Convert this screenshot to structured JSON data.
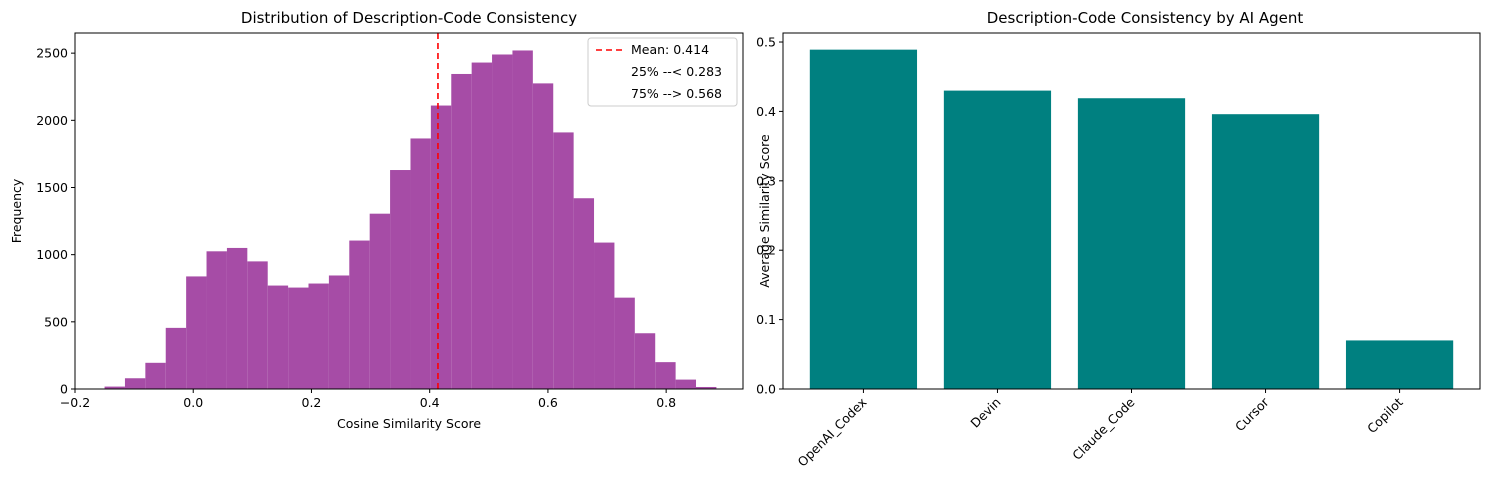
{
  "chart_data": [
    {
      "type": "bar",
      "subtype": "histogram",
      "title": "Distribution of Description-Code Consistency",
      "xlabel": "Cosine Similarity Score",
      "ylabel": "Frequency",
      "xlim": [
        -0.2,
        0.93
      ],
      "ylim": [
        0,
        2650
      ],
      "xticks": [
        -0.2,
        0.0,
        0.2,
        0.4,
        0.6,
        0.8
      ],
      "xtick_labels": [
        "−0.2",
        "0.0",
        "0.2",
        "0.4",
        "0.6",
        "0.8"
      ],
      "yticks": [
        0,
        500,
        1000,
        1500,
        2000,
        2500
      ],
      "ytick_labels": [
        "0",
        "500",
        "1000",
        "1500",
        "2000",
        "2500"
      ],
      "bin_start": -0.15,
      "bin_width": 0.0345,
      "values": [
        18,
        80,
        195,
        455,
        838,
        1025,
        1050,
        950,
        770,
        755,
        785,
        845,
        1105,
        1305,
        1630,
        1865,
        2110,
        2345,
        2430,
        2490,
        2520,
        2275,
        1910,
        1420,
        1090,
        680,
        415,
        200,
        70,
        15
      ],
      "color": "#a64ca6",
      "mean": 0.414,
      "mean_color": "#ff0000",
      "legend_position": "upper right",
      "legend": [
        "Mean: 0.414",
        "25% --< 0.283",
        "75% --> 0.568"
      ]
    },
    {
      "type": "bar",
      "title": "Description-Code Consistency by AI Agent",
      "xlabel": "",
      "ylabel": "Average Similarity Score",
      "categories": [
        "OpenAI_Codex",
        "Devin",
        "Claude_Code",
        "Cursor",
        "Copilot"
      ],
      "values": [
        0.489,
        0.43,
        0.419,
        0.396,
        0.07
      ],
      "ylim": [
        0,
        0.513
      ],
      "yticks": [
        0.0,
        0.1,
        0.2,
        0.3,
        0.4,
        0.5
      ],
      "ytick_labels": [
        "0.0",
        "0.1",
        "0.2",
        "0.3",
        "0.4",
        "0.5"
      ],
      "color": "#008080"
    }
  ]
}
